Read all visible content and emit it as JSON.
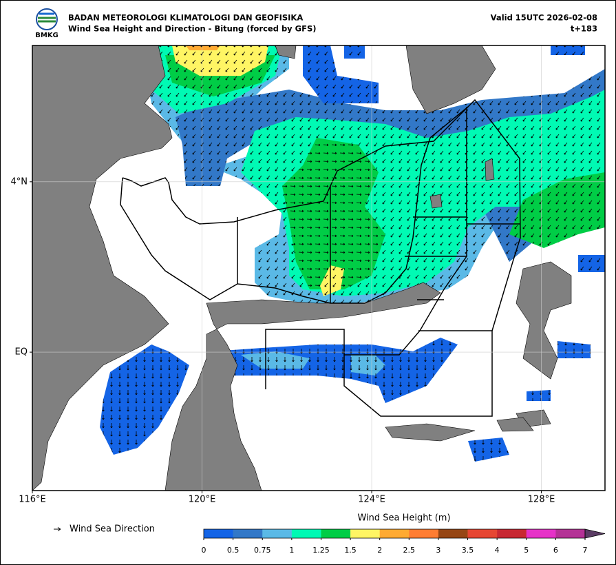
{
  "header": {
    "logo_text": "BMKG",
    "agency": "BADAN METEOROLOGI KLIMATOLOGI DAN GEOFISIKA",
    "title": "Wind Sea Height and Direction - Bitung (forced by GFS)",
    "valid": "Valid 15UTC 2026-02-08",
    "lead": "t+183"
  },
  "map": {
    "lon_range": [
      116,
      129.5
    ],
    "lat_range": [
      -3.25,
      7.2
    ],
    "lon_ticks": [
      {
        "value": 116,
        "label": "116°E"
      },
      {
        "value": 120,
        "label": "120°E"
      },
      {
        "value": 124,
        "label": "124°E"
      },
      {
        "value": 128,
        "label": "128°E"
      }
    ],
    "lat_ticks": [
      {
        "value": 4,
        "label": "4°N"
      },
      {
        "value": 0,
        "label": "EQ"
      }
    ],
    "grid": true,
    "land_color": "#808080",
    "legend": {
      "label": "Wind Sea Direction"
    },
    "colorbar": {
      "title": "Wind Sea Height (m)",
      "boundaries": [
        0,
        0.5,
        0.75,
        1,
        1.25,
        1.5,
        2,
        2.5,
        3,
        3.5,
        4,
        5,
        6,
        7
      ],
      "colors": [
        "#1464e6",
        "#3278c8",
        "#5ab9e6",
        "#00fab4",
        "#00cd46",
        "#fff564",
        "#ffaa32",
        "#ff7d32",
        "#964614",
        "#e64632",
        "#c82832",
        "#e632c8",
        "#b43296"
      ],
      "over_color": "#5a3c64"
    }
  }
}
